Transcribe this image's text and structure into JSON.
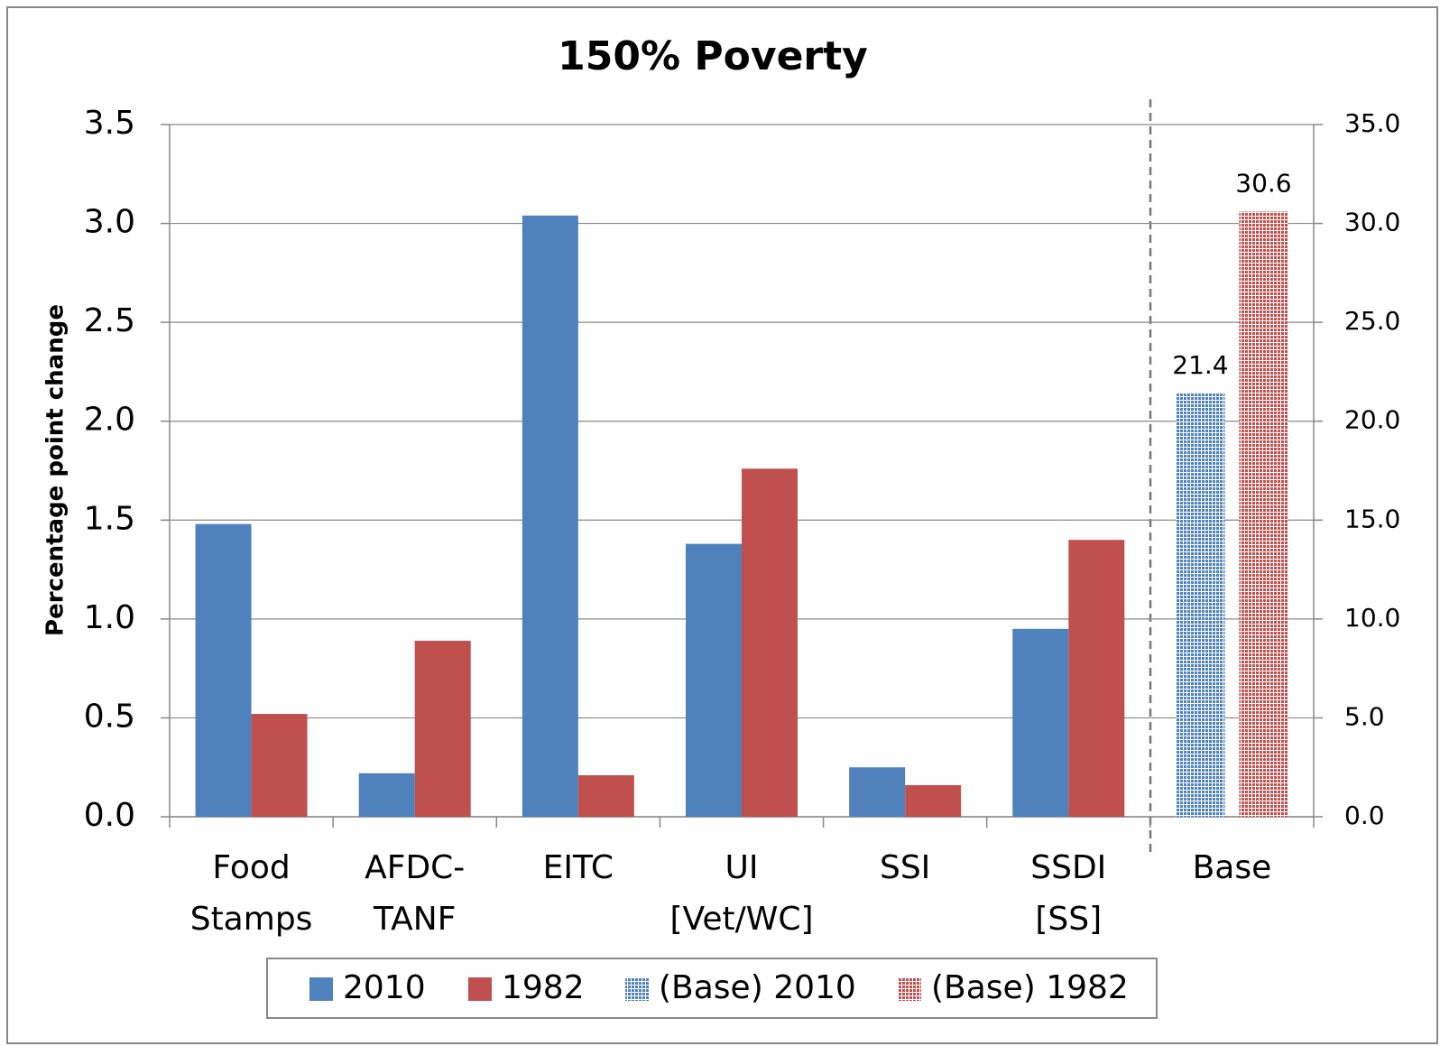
{
  "chart_data": {
    "type": "bar",
    "title": "150% Poverty",
    "y_label": "Percentage point change",
    "categories": [
      [
        "Food",
        "Stamps"
      ],
      [
        "AFDC-",
        "TANF"
      ],
      [
        "EITC"
      ],
      [
        "UI",
        "[Vet/WC]"
      ],
      [
        "SSI"
      ],
      [
        "SSDI",
        "[SS]"
      ],
      [
        "Base"
      ]
    ],
    "series": [
      {
        "name": "2010",
        "color": "#4f81bd",
        "values": [
          1.48,
          0.22,
          3.04,
          1.38,
          0.25,
          0.95,
          null
        ]
      },
      {
        "name": "1982",
        "color": "#c0504d",
        "values": [
          0.52,
          0.89,
          0.21,
          1.76,
          0.16,
          1.4,
          null
        ]
      },
      {
        "name": "(Base) 2010",
        "color": "#4f81bd",
        "pattern": "dots",
        "axis": "y2",
        "data_labels": true,
        "values": [
          null,
          null,
          null,
          null,
          null,
          null,
          21.4
        ]
      },
      {
        "name": "(Base) 1982",
        "color": "#c0504d",
        "pattern": "dots",
        "axis": "y2",
        "data_labels": true,
        "values": [
          null,
          null,
          null,
          null,
          null,
          null,
          30.6
        ]
      }
    ],
    "ylim": [
      0,
      3.5
    ],
    "yticks": [
      {
        "value": 0,
        "label": "0.0"
      },
      {
        "value": 0.5,
        "label": "0.5"
      },
      {
        "value": 1,
        "label": "1.0"
      },
      {
        "value": 1.5,
        "label": "1.5"
      },
      {
        "value": 2,
        "label": "2.0"
      },
      {
        "value": 2.5,
        "label": "2.5"
      },
      {
        "value": 3,
        "label": "3.0"
      },
      {
        "value": 3.5,
        "label": "3.5"
      }
    ],
    "y2lim": [
      0,
      35
    ],
    "y2ticks": [
      {
        "value": 0,
        "label": "0.0"
      },
      {
        "value": 5,
        "label": "5.0"
      },
      {
        "value": 10,
        "label": "10.0"
      },
      {
        "value": 15,
        "label": "15.0"
      },
      {
        "value": 20,
        "label": "20.0"
      },
      {
        "value": 25,
        "label": "25.0"
      },
      {
        "value": 30,
        "label": "30.0"
      },
      {
        "value": 35,
        "label": "35.0"
      }
    ],
    "grid": true,
    "legend": "bottom"
  }
}
